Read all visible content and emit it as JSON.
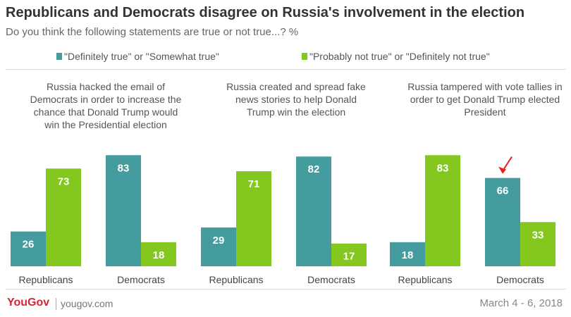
{
  "title": "Republicans and Democrats disagree on Russia's involvement in the election",
  "subtitle": "Do you think the following statements are true or not true...? %",
  "legend": [
    {
      "label": "\"Definitely true\" or \"Somewhat true\"",
      "color": "#459c9e"
    },
    {
      "label": "\"Probably not true\" or \"Definitely not true\"",
      "color": "#84c81f"
    }
  ],
  "footer": {
    "logo": "YouGov",
    "site": "yougov.com",
    "date": "March 4 - 6, 2018"
  },
  "chart_data": [
    {
      "type": "bar",
      "title_lines": [
        "Russia hacked the email of",
        "Democrats in order to increase the",
        "chance that Donald Trump would",
        "win the Presidential election"
      ],
      "categories": [
        "Republicans",
        "Democrats"
      ],
      "series": [
        {
          "name": "\"Definitely true\" or \"Somewhat true\"",
          "values": [
            26,
            83
          ]
        },
        {
          "name": "\"Probably not true\" or \"Definitely not true\"",
          "values": [
            73,
            18
          ]
        }
      ],
      "ylim": [
        0,
        100
      ]
    },
    {
      "type": "bar",
      "title_lines": [
        "Russia created and spread fake",
        "news stories to help Donald",
        "Trump win the election"
      ],
      "categories": [
        "Republicans",
        "Democrats"
      ],
      "series": [
        {
          "name": "\"Definitely true\" or \"Somewhat true\"",
          "values": [
            29,
            82
          ]
        },
        {
          "name": "\"Probably not true\" or \"Definitely not true\"",
          "values": [
            71,
            17
          ]
        }
      ],
      "ylim": [
        0,
        100
      ]
    },
    {
      "type": "bar",
      "title_lines": [
        "Russia tampered with vote tallies in",
        "order to get Donald Trump elected",
        "President"
      ],
      "categories": [
        "Republicans",
        "Democrats"
      ],
      "series": [
        {
          "name": "\"Definitely true\" or \"Somewhat true\"",
          "values": [
            18,
            66
          ]
        },
        {
          "name": "\"Probably not true\" or \"Definitely not true\"",
          "values": [
            83,
            33
          ]
        }
      ],
      "ylim": [
        0,
        100
      ],
      "annotation": {
        "type": "arrow",
        "target": "Democrats",
        "series_index": 0,
        "color": "#e8221b"
      }
    }
  ]
}
